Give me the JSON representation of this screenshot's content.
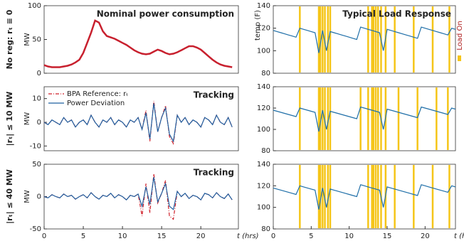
{
  "chart_data": [
    {
      "type": "line",
      "title": "Nominal power consumption",
      "row_label": "No reg: rₜ ≡ 0",
      "ylabel": "MW",
      "x": [
        0,
        0.5,
        1,
        1.5,
        2,
        2.5,
        3,
        3.5,
        4,
        4.5,
        5,
        5.5,
        6,
        6.5,
        7,
        7.5,
        8,
        8.5,
        9,
        9.5,
        10,
        10.5,
        11,
        11.5,
        12,
        12.5,
        13,
        13.5,
        14,
        14.5,
        15,
        15.5,
        16,
        16.5,
        17,
        17.5,
        18,
        18.5,
        19,
        19.5,
        20,
        20.5,
        21,
        21.5,
        22,
        22.5,
        23,
        23.5,
        24
      ],
      "series": [
        {
          "color": "#c8202e",
          "width": 2.5,
          "values": [
            12,
            10,
            9,
            9,
            9,
            10,
            11,
            13,
            16,
            20,
            30,
            45,
            60,
            78,
            75,
            62,
            55,
            53,
            51,
            48,
            45,
            42,
            38,
            34,
            31,
            29,
            28,
            29,
            32,
            35,
            33,
            30,
            28,
            29,
            31,
            34,
            37,
            40,
            40,
            38,
            35,
            30,
            25,
            20,
            16,
            13,
            11,
            10,
            9
          ]
        }
      ],
      "xlim": [
        0,
        24.8
      ],
      "ylim": [
        0,
        100
      ],
      "yticks": [
        0,
        50,
        100
      ]
    },
    {
      "type": "line",
      "title": "Tracking",
      "row_label": "|rₜ| ≤ 10 MW",
      "ylabel": "MW",
      "x": [
        0,
        0.5,
        1,
        1.5,
        2,
        2.5,
        3,
        3.5,
        4,
        4.5,
        5,
        5.5,
        6,
        6.5,
        7,
        7.5,
        8,
        8.5,
        9,
        9.5,
        10,
        10.5,
        11,
        11.5,
        12,
        12.5,
        13,
        13.5,
        14,
        14.5,
        15,
        15.5,
        16,
        16.5,
        17,
        17.5,
        18,
        18.5,
        19,
        19.5,
        20,
        20.5,
        21,
        21.5,
        22,
        22.5,
        23,
        23.5,
        24
      ],
      "series": [
        {
          "name": "BPA Reference: rₜ",
          "color": "#d0202a",
          "dash": "dashdot",
          "values": [
            0,
            -1,
            1,
            0,
            -1,
            2,
            0,
            1,
            -2,
            0,
            1,
            -1,
            3,
            0,
            -2,
            1,
            0,
            2,
            -1,
            1,
            0,
            -2,
            1,
            0,
            2,
            -3,
            5,
            -8,
            9,
            -4,
            2,
            7,
            -6,
            -9,
            3,
            0,
            2,
            -1,
            1,
            0,
            -2,
            2,
            1,
            -1,
            3,
            0,
            -1,
            2,
            -2
          ]
        },
        {
          "name": "Power Deviation",
          "color": "#1f5fa0",
          "values": [
            0,
            -1,
            1,
            0,
            -1,
            2,
            0,
            1,
            -2,
            0,
            1,
            -1,
            3,
            0,
            -2,
            1,
            0,
            2,
            -1,
            1,
            0,
            -2,
            1,
            0,
            2,
            -3,
            4,
            -7,
            8,
            -4,
            2,
            6,
            -5,
            -8,
            3,
            0,
            2,
            -1,
            1,
            0,
            -2,
            2,
            1,
            -1,
            3,
            0,
            -1,
            2,
            -2
          ]
        }
      ],
      "xlim": [
        0,
        24.8
      ],
      "ylim": [
        -12,
        15
      ],
      "yticks": [
        -10,
        0,
        10
      ]
    },
    {
      "type": "line",
      "title": "Tracking",
      "row_label": "|rₜ| ≤ 40 MW",
      "ylabel": "MW",
      "xlabel": "t (hrs)",
      "x": [
        0,
        0.5,
        1,
        1.5,
        2,
        2.5,
        3,
        3.5,
        4,
        4.5,
        5,
        5.5,
        6,
        6.5,
        7,
        7.5,
        8,
        8.5,
        9,
        9.5,
        10,
        10.5,
        11,
        11.5,
        12,
        12.5,
        13,
        13.5,
        14,
        14.5,
        15,
        15.5,
        16,
        16.5,
        17,
        17.5,
        18,
        18.5,
        19,
        19.5,
        20,
        20.5,
        21,
        21.5,
        22,
        22.5,
        23,
        23.5,
        24
      ],
      "series": [
        {
          "color": "#d0202a",
          "dash": "dashdot",
          "values": [
            0,
            -2,
            3,
            0,
            -2,
            4,
            0,
            2,
            -4,
            0,
            3,
            -2,
            6,
            0,
            -4,
            2,
            0,
            5,
            -2,
            3,
            0,
            -5,
            2,
            0,
            4,
            -30,
            20,
            -25,
            35,
            -10,
            5,
            25,
            -30,
            -35,
            8,
            0,
            5,
            -3,
            2,
            0,
            -5,
            5,
            3,
            -2,
            6,
            0,
            -3,
            4,
            -5
          ]
        },
        {
          "color": "#1f5fa0",
          "values": [
            0,
            -2,
            3,
            0,
            -2,
            4,
            0,
            2,
            -4,
            0,
            3,
            -2,
            6,
            0,
            -4,
            2,
            0,
            5,
            -2,
            3,
            0,
            -5,
            2,
            0,
            4,
            -15,
            15,
            -12,
            30,
            -8,
            5,
            20,
            -15,
            -20,
            8,
            0,
            5,
            -3,
            2,
            0,
            -5,
            5,
            3,
            -2,
            6,
            0,
            -3,
            4,
            -5
          ]
        }
      ],
      "xlim": [
        0,
        24.8
      ],
      "ylim": [
        -50,
        50
      ],
      "yticks": [
        -50,
        0,
        50
      ],
      "xticks": [
        0,
        5,
        10,
        15,
        20
      ]
    },
    {
      "type": "line",
      "title": "Typical Load Response",
      "ylabel": "temp (F)",
      "x": [
        0,
        0.5,
        1,
        1.5,
        2,
        2.5,
        3,
        3.5,
        4,
        4.5,
        5,
        5.5,
        6,
        6.5,
        7,
        7.5,
        8,
        8.5,
        9,
        9.5,
        10,
        10.5,
        11,
        11.5,
        12,
        12.5,
        13,
        13.5,
        14,
        14.5,
        15,
        15.5,
        16,
        16.5,
        17,
        17.5,
        18,
        18.5,
        19,
        19.5,
        20,
        20.5,
        21,
        21.5,
        22,
        22.5,
        23,
        23.5,
        24
      ],
      "series": [
        {
          "color": "#1f6fa8",
          "values": [
            118,
            117,
            116,
            115,
            114,
            113,
            112,
            120,
            119,
            118,
            117,
            116,
            98,
            118,
            100,
            117,
            116,
            115,
            114,
            113,
            112,
            111,
            110,
            121,
            120,
            119,
            118,
            117,
            116,
            100,
            119,
            118,
            117,
            116,
            115,
            114,
            113,
            112,
            111,
            121,
            120,
            119,
            118,
            117,
            116,
            115,
            114,
            120,
            119
          ]
        }
      ],
      "load_on": {
        "name": "Load On",
        "color": "#f5c518",
        "x": [
          3.5,
          6,
          6.2,
          6.5,
          6.8,
          7.2,
          7.5,
          12.5,
          13,
          13.2,
          13.5,
          13.8,
          14.2,
          14.8,
          16,
          18.5,
          21,
          23.2
        ]
      },
      "xlim": [
        0,
        24
      ],
      "ylim": [
        80,
        140
      ],
      "yticks": [
        80,
        100,
        120,
        140
      ]
    },
    {
      "type": "line",
      "x": [
        0,
        0.5,
        1,
        1.5,
        2,
        2.5,
        3,
        3.5,
        4,
        4.5,
        5,
        5.5,
        6,
        6.5,
        7,
        7.5,
        8,
        8.5,
        9,
        9.5,
        10,
        10.5,
        11,
        11.5,
        12,
        12.5,
        13,
        13.5,
        14,
        14.5,
        15,
        15.5,
        16,
        16.5,
        17,
        17.5,
        18,
        18.5,
        19,
        19.5,
        20,
        20.5,
        21,
        21.5,
        22,
        22.5,
        23,
        23.5,
        24
      ],
      "series": [
        {
          "color": "#1f6fa8",
          "values": [
            118,
            117,
            116,
            115,
            114,
            113,
            112,
            120,
            119,
            118,
            117,
            116,
            98,
            118,
            100,
            117,
            116,
            115,
            114,
            113,
            112,
            111,
            110,
            121,
            120,
            119,
            118,
            117,
            116,
            100,
            119,
            118,
            117,
            116,
            115,
            114,
            113,
            112,
            111,
            121,
            120,
            119,
            118,
            117,
            116,
            115,
            114,
            120,
            119
          ]
        }
      ],
      "load_on": {
        "color": "#f5c518",
        "x": [
          3.5,
          6,
          6.2,
          6.5,
          6.8,
          7.2,
          7.5,
          11.5,
          12.5,
          13,
          13.2,
          13.5,
          13.8,
          14.2,
          14.8,
          16.5,
          19,
          21.5,
          23
        ]
      },
      "xlim": [
        0,
        24
      ],
      "ylim": [
        80,
        140
      ],
      "yticks": [
        80,
        100,
        120,
        140
      ]
    },
    {
      "type": "line",
      "xlabel": "t (hrs)",
      "x": [
        0,
        0.5,
        1,
        1.5,
        2,
        2.5,
        3,
        3.5,
        4,
        4.5,
        5,
        5.5,
        6,
        6.5,
        7,
        7.5,
        8,
        8.5,
        9,
        9.5,
        10,
        10.5,
        11,
        11.5,
        12,
        12.5,
        13,
        13.5,
        14,
        14.5,
        15,
        15.5,
        16,
        16.5,
        17,
        17.5,
        18,
        18.5,
        19,
        19.5,
        20,
        20.5,
        21,
        21.5,
        22,
        22.5,
        23,
        23.5,
        24
      ],
      "series": [
        {
          "color": "#1f6fa8",
          "values": [
            118,
            117,
            116,
            115,
            114,
            113,
            112,
            120,
            119,
            118,
            117,
            116,
            98,
            118,
            100,
            117,
            116,
            115,
            114,
            113,
            112,
            111,
            110,
            121,
            120,
            119,
            118,
            117,
            116,
            100,
            119,
            118,
            117,
            116,
            115,
            114,
            113,
            112,
            111,
            121,
            120,
            119,
            118,
            117,
            116,
            115,
            114,
            120,
            119
          ]
        }
      ],
      "load_on": {
        "color": "#f5c518",
        "x": [
          3.5,
          6,
          6.2,
          6.5,
          6.8,
          7.2,
          7.5,
          12.5,
          13,
          13.2,
          13.5,
          13.8,
          14.2,
          14.8,
          16,
          18.5,
          21,
          23.2
        ]
      },
      "xlim": [
        0,
        24
      ],
      "ylim": [
        80,
        140
      ],
      "yticks": [
        80,
        100,
        120,
        140
      ],
      "xticks": [
        0,
        5,
        10,
        15,
        20
      ]
    }
  ]
}
